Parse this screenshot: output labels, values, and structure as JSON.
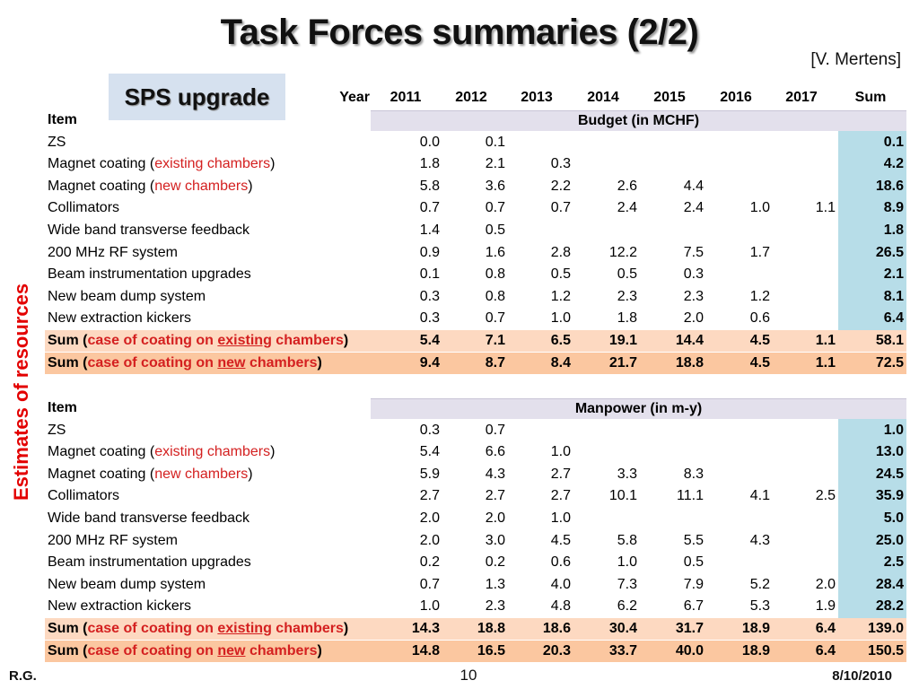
{
  "slide": {
    "title": "Task Forces summaries (2/2)",
    "credit": "[V. Mertens]",
    "badge": "SPS upgrade",
    "side_label": "Estimates of resources",
    "footer_left": "R.G.",
    "footer_page": "10",
    "footer_date": "8/10/2010"
  },
  "header": {
    "year_label": "Year",
    "years": [
      "2011",
      "2012",
      "2013",
      "2014",
      "2015",
      "2016",
      "2017",
      "Sum"
    ]
  },
  "budget": {
    "item_label": "Item",
    "section_title": "Budget (in MCHF)",
    "rows": [
      {
        "label": "ZS",
        "values": [
          "0.0",
          "0.1",
          "",
          "",
          "",
          "",
          ""
        ],
        "sum": "0.1"
      },
      {
        "label_parts": [
          "Magnet coating (",
          "existing chambers",
          ")"
        ],
        "values": [
          "1.8",
          "2.1",
          "0.3",
          "",
          "",
          "",
          ""
        ],
        "sum": "4.2"
      },
      {
        "label_parts": [
          "Magnet coating (",
          "new chambers",
          ")"
        ],
        "values": [
          "5.8",
          "3.6",
          "2.2",
          "2.6",
          "4.4",
          "",
          ""
        ],
        "sum": "18.6"
      },
      {
        "label": "Collimators",
        "values": [
          "0.7",
          "0.7",
          "0.7",
          "2.4",
          "2.4",
          "1.0",
          "1.1"
        ],
        "sum": "8.9"
      },
      {
        "label": "Wide band transverse feedback",
        "values": [
          "1.4",
          "0.5",
          "",
          "",
          "",
          "",
          ""
        ],
        "sum": "1.8"
      },
      {
        "label": "200 MHz RF system",
        "values": [
          "0.9",
          "1.6",
          "2.8",
          "12.2",
          "7.5",
          "1.7",
          ""
        ],
        "sum": "26.5"
      },
      {
        "label": "Beam instrumentation upgrades",
        "values": [
          "0.1",
          "0.8",
          "0.5",
          "0.5",
          "0.3",
          "",
          ""
        ],
        "sum": "2.1"
      },
      {
        "label": "New beam dump system",
        "values": [
          "0.3",
          "0.8",
          "1.2",
          "2.3",
          "2.3",
          "1.2",
          ""
        ],
        "sum": "8.1"
      },
      {
        "label": "New extraction kickers",
        "values": [
          "0.3",
          "0.7",
          "1.0",
          "1.8",
          "2.0",
          "0.6",
          ""
        ],
        "sum": "6.4"
      }
    ],
    "totals": [
      {
        "label_parts": [
          "Sum (",
          "case of coating on ",
          "existing",
          " chambers",
          ")"
        ],
        "values": [
          "5.4",
          "7.1",
          "6.5",
          "19.1",
          "14.4",
          "4.5",
          "1.1"
        ],
        "sum": "58.1"
      },
      {
        "label_parts": [
          "Sum (",
          "case of coating on ",
          "new",
          " chambers",
          ")"
        ],
        "values": [
          "9.4",
          "8.7",
          "8.4",
          "21.7",
          "18.8",
          "4.5",
          "1.1"
        ],
        "sum": "72.5"
      }
    ]
  },
  "manpower": {
    "item_label": "Item",
    "section_title": "Manpower (in m-y)",
    "rows": [
      {
        "label": "ZS",
        "values": [
          "0.3",
          "0.7",
          "",
          "",
          "",
          "",
          ""
        ],
        "sum": "1.0"
      },
      {
        "label_parts": [
          "Magnet coating (",
          "existing chambers",
          ")"
        ],
        "values": [
          "5.4",
          "6.6",
          "1.0",
          "",
          "",
          "",
          ""
        ],
        "sum": "13.0"
      },
      {
        "label_parts": [
          "Magnet coating (",
          "new chambers",
          ")"
        ],
        "values": [
          "5.9",
          "4.3",
          "2.7",
          "3.3",
          "8.3",
          "",
          ""
        ],
        "sum": "24.5"
      },
      {
        "label": "Collimators",
        "values": [
          "2.7",
          "2.7",
          "2.7",
          "10.1",
          "11.1",
          "4.1",
          "2.5"
        ],
        "sum": "35.9"
      },
      {
        "label": "Wide band transverse feedback",
        "values": [
          "2.0",
          "2.0",
          "1.0",
          "",
          "",
          "",
          ""
        ],
        "sum": "5.0"
      },
      {
        "label": "200 MHz RF system",
        "values": [
          "2.0",
          "3.0",
          "4.5",
          "5.8",
          "5.5",
          "4.3",
          ""
        ],
        "sum": "25.0"
      },
      {
        "label": "Beam instrumentation upgrades",
        "values": [
          "0.2",
          "0.2",
          "0.6",
          "1.0",
          "0.5",
          "",
          ""
        ],
        "sum": "2.5"
      },
      {
        "label": "New beam dump system",
        "values": [
          "0.7",
          "1.3",
          "4.0",
          "7.3",
          "7.9",
          "5.2",
          "2.0"
        ],
        "sum": "28.4"
      },
      {
        "label": "New extraction kickers",
        "values": [
          "1.0",
          "2.3",
          "4.8",
          "6.2",
          "6.7",
          "5.3",
          "1.9"
        ],
        "sum": "28.2"
      }
    ],
    "totals": [
      {
        "label_parts": [
          "Sum (",
          "case of coating on ",
          "existing",
          " chambers",
          ")"
        ],
        "values": [
          "14.3",
          "18.8",
          "18.6",
          "30.4",
          "31.7",
          "18.9",
          "6.4"
        ],
        "sum": "139.0"
      },
      {
        "label_parts": [
          "Sum (",
          "case of coating on ",
          "new",
          " chambers",
          ")"
        ],
        "values": [
          "14.8",
          "16.5",
          "20.3",
          "33.7",
          "40.0",
          "18.9",
          "6.4"
        ],
        "sum": "150.5"
      }
    ]
  },
  "colors": {
    "red_text": "#d42020",
    "sum_column": "#b7dde8",
    "section_header": "#e3e0ec",
    "total_row_1": "#fdd9c1",
    "total_row_2": "#fbc7a0",
    "badge_bg": "#d6e1ef"
  }
}
